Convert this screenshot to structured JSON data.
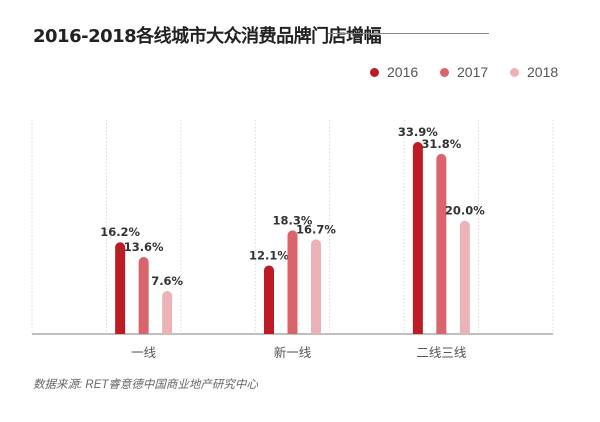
{
  "title": "2016-2018各线城市大众消费品牌门店增幅",
  "source": "数据来源: RET睿意德中国商业地产研究中心",
  "chart_data": {
    "type": "bar",
    "title": "2016-2018各线城市大众消费品牌门店增幅",
    "xlabel": "",
    "ylabel": "",
    "categories": [
      "一线",
      "新一线",
      "二线三线"
    ],
    "series": [
      {
        "name": "2016",
        "color": "#BE1C24",
        "values": [
          16.2,
          12.1,
          33.9
        ]
      },
      {
        "name": "2017",
        "color": "#D9646C",
        "values": [
          13.6,
          18.3,
          31.8
        ]
      },
      {
        "name": "2018",
        "color": "#EBB3B6",
        "values": [
          7.6,
          16.7,
          20.0
        ]
      }
    ],
    "value_format": "%",
    "ylim": [
      0,
      36
    ],
    "legend": "top-right",
    "grid": "vertical-dotted"
  }
}
